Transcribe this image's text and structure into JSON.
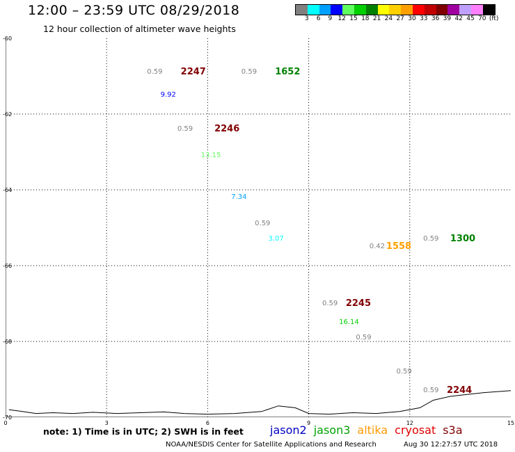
{
  "title": "12:00 – 23:59 UTC 08/29/2018",
  "subtitle": "12 hour collection of altimeter wave heights",
  "colorbar": {
    "colors": [
      "#808080",
      "#00ffff",
      "#00a0ff",
      "#0000ff",
      "#60ff60",
      "#00d000",
      "#008000",
      "#ffff00",
      "#ffd000",
      "#ffa000",
      "#ff0000",
      "#c00000",
      "#800000",
      "#a000a0",
      "#c0a0ff",
      "#ff80ff",
      "#000000"
    ],
    "labels": [
      "3",
      "6",
      "9",
      "12",
      "15",
      "18",
      "21",
      "24",
      "27",
      "30",
      "33",
      "36",
      "39",
      "42",
      "45",
      "70",
      "(ft)"
    ]
  },
  "axes": {
    "yticks": [
      "-60",
      "-62",
      "-64",
      "-66",
      "-68",
      "-70"
    ],
    "xticks": [
      "0",
      "3",
      "6",
      "9",
      "12",
      "15"
    ]
  },
  "chart_data": {
    "type": "scatter",
    "xlim": [
      0,
      15
    ],
    "ylim": [
      -70,
      -60
    ],
    "time_labels": [
      {
        "text": "2247",
        "color": "#800000",
        "x": 5.2,
        "y": -60.9
      },
      {
        "text": "1652",
        "color": "#008000",
        "x": 8.0,
        "y": -60.9
      },
      {
        "text": "2246",
        "color": "#800000",
        "x": 6.2,
        "y": -62.4
      },
      {
        "text": "1558",
        "color": "#ffa000",
        "x": 11.3,
        "y": -65.5
      },
      {
        "text": "1300",
        "color": "#008000",
        "x": 13.2,
        "y": -65.3
      },
      {
        "text": "2245",
        "color": "#800000",
        "x": 10.1,
        "y": -67.0
      },
      {
        "text": "2244",
        "color": "#800000",
        "x": 13.1,
        "y": -69.3
      }
    ],
    "swh_values": [
      {
        "text": "0.59",
        "color": "#808080",
        "x": 4.2,
        "y": -60.9
      },
      {
        "text": "0.59",
        "color": "#808080",
        "x": 7.0,
        "y": -60.9
      },
      {
        "text": "9.92",
        "color": "#0000ff",
        "x": 4.6,
        "y": -61.5
      },
      {
        "text": "0.59",
        "color": "#808080",
        "x": 5.1,
        "y": -62.4
      },
      {
        "text": "13.15",
        "color": "#60ff60",
        "x": 5.8,
        "y": -63.1
      },
      {
        "text": "7.34",
        "color": "#00a0ff",
        "x": 6.7,
        "y": -64.2
      },
      {
        "text": "0.59",
        "color": "#808080",
        "x": 7.4,
        "y": -64.9
      },
      {
        "text": "3.07",
        "color": "#00ffff",
        "x": 7.8,
        "y": -65.3
      },
      {
        "text": "0.42",
        "color": "#808080",
        "x": 10.8,
        "y": -65.5
      },
      {
        "text": "0.59",
        "color": "#808080",
        "x": 12.4,
        "y": -65.3
      },
      {
        "text": "0.59",
        "color": "#808080",
        "x": 9.4,
        "y": -67.0
      },
      {
        "text": "16.14",
        "color": "#00d000",
        "x": 9.9,
        "y": -67.5
      },
      {
        "text": "0.59",
        "color": "#808080",
        "x": 10.4,
        "y": -67.9
      },
      {
        "text": "0.59",
        "color": "#808080",
        "x": 11.6,
        "y": -68.8
      },
      {
        "text": "0.59",
        "color": "#808080",
        "x": 12.4,
        "y": -69.3
      }
    ],
    "grid": true
  },
  "note": "note: 1) Time is in UTC; 2) SWH is in feet",
  "satellites": [
    {
      "name": "jason2",
      "color": "#0000c0"
    },
    {
      "name": "jason3",
      "color": "#00a000"
    },
    {
      "name": "altika",
      "color": "#ff9900"
    },
    {
      "name": "cryosat",
      "color": "#e00000"
    },
    {
      "name": "s3a",
      "color": "#800000"
    }
  ],
  "credit": "NOAA/NESDIS Center for Satellite Applications and Research",
  "timestamp": "Aug 30 12:27:57 UTC 2018"
}
